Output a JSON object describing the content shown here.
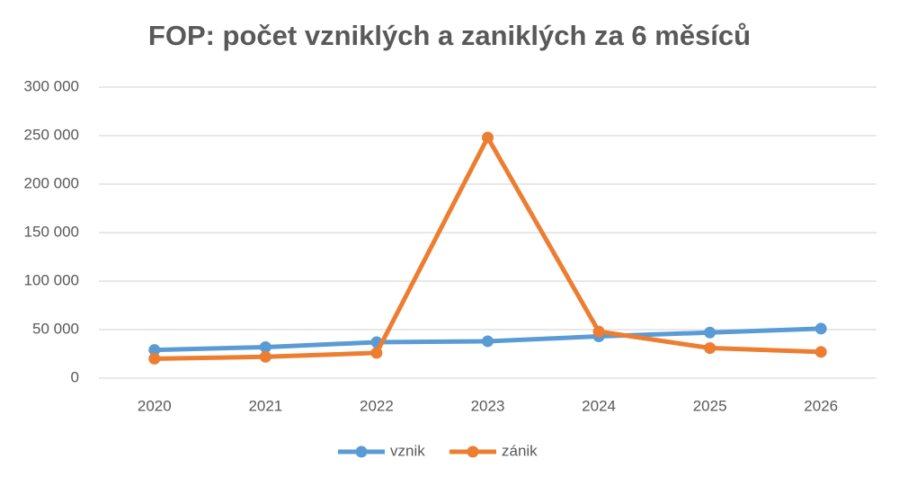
{
  "chart_data": {
    "type": "line",
    "title": "FOP: počet vzniklých a zaniklých za 6 měsíců",
    "categories": [
      "2020",
      "2021",
      "2022",
      "2023",
      "2024",
      "2025",
      "2026"
    ],
    "series": [
      {
        "name": "vznik",
        "color": "#5b9bd5",
        "values": [
          29000,
          32000,
          37000,
          38000,
          43000,
          47000,
          51000
        ]
      },
      {
        "name": "zánik",
        "color": "#ed7d31",
        "values": [
          20000,
          22000,
          26000,
          248000,
          48000,
          31000,
          27000
        ]
      }
    ],
    "ylim": [
      0,
      300000
    ],
    "yticks": [
      0,
      {
        "value": 50000,
        "label": "50 000"
      },
      {
        "value": 100000,
        "label": "100 000"
      },
      {
        "value": 150000,
        "label": "150 000"
      },
      {
        "value": 200000,
        "label": "200 000"
      },
      {
        "value": 250000,
        "label": "250 000"
      },
      {
        "value": 300000,
        "label": "300 000"
      }
    ],
    "grid": true,
    "legend": "bottom"
  }
}
